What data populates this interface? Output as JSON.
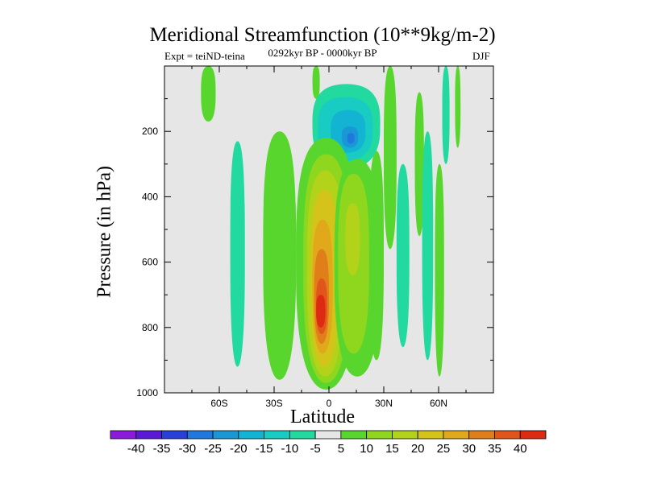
{
  "chart_data": {
    "type": "contour",
    "title": "Meridional Streamfunction (10**9kg/m-2)",
    "subtitle_left": "Expt = teiND-teina",
    "subtitle_center": "0292kyr BP - 0000kyr BP",
    "subtitle_right": "DJF",
    "xlabel": "Latitude",
    "ylabel": "Pressure (in hPa)",
    "x_ticks": [
      {
        "value": -60,
        "label": "60S"
      },
      {
        "value": -30,
        "label": "30S"
      },
      {
        "value": 0,
        "label": "0"
      },
      {
        "value": 30,
        "label": "30N"
      },
      {
        "value": 60,
        "label": "60N"
      }
    ],
    "y_ticks": [
      {
        "value": 200,
        "label": "200"
      },
      {
        "value": 400,
        "label": "400"
      },
      {
        "value": 600,
        "label": "600"
      },
      {
        "value": 800,
        "label": "800"
      },
      {
        "value": 1000,
        "label": "1000"
      }
    ],
    "xlim": [
      -90,
      90
    ],
    "ylim": [
      0,
      1000
    ],
    "levels": [
      -40,
      -35,
      -30,
      -25,
      -20,
      -15,
      -10,
      -5,
      5,
      10,
      15,
      20,
      25,
      30,
      35,
      40
    ],
    "colors": [
      "#8c1adb",
      "#5a19d7",
      "#2840d9",
      "#1f78de",
      "#1a98d6",
      "#13b3d3",
      "#18ccc4",
      "#22d9a0",
      "#e6e6e6",
      "#59d62e",
      "#8fd61f",
      "#b3d21a",
      "#d4c41a",
      "#e0a81a",
      "#e07f1a",
      "#e0561a",
      "#dd2a12"
    ],
    "background_color": "#e6e6e6",
    "features": [
      {
        "label": "negative cell aloft",
        "center": [
          12,
          230
        ],
        "min": -25,
        "rings": [
          {
            "level": -5,
            "lat": [
              -9,
              28
            ],
            "p": [
              55,
              315
            ]
          },
          {
            "level": -10,
            "lat": [
              -6,
              24
            ],
            "p": [
              95,
              290
            ]
          },
          {
            "level": -15,
            "lat": [
              1,
              20
            ],
            "p": [
              135,
              265
            ]
          },
          {
            "level": -20,
            "lat": [
              7,
              16
            ],
            "p": [
              185,
              250
            ]
          },
          {
            "level": -25,
            "lat": [
              10,
              14
            ],
            "p": [
              205,
              238
            ]
          }
        ]
      },
      {
        "label": "positive cell",
        "center": [
          -5,
          740
        ],
        "max": 40,
        "rings": [
          {
            "level": 5,
            "lat": [
              -18,
              15
            ],
            "p": [
              220,
              990
            ]
          },
          {
            "level": 10,
            "lat": [
              -14,
              11
            ],
            "p": [
              270,
              970
            ]
          },
          {
            "level": 15,
            "lat": [
              -12,
              8
            ],
            "p": [
              320,
              950
            ]
          },
          {
            "level": 20,
            "lat": [
              -10,
              5
            ],
            "p": [
              380,
              920
            ]
          },
          {
            "level": 25,
            "lat": [
              -9,
              2
            ],
            "p": [
              470,
              880
            ]
          },
          {
            "level": 30,
            "lat": [
              -8,
              0
            ],
            "p": [
              560,
              850
            ]
          },
          {
            "level": 35,
            "lat": [
              -7,
              -1
            ],
            "p": [
              650,
              820
            ]
          },
          {
            "level": 40,
            "lat": [
              -7,
              -2
            ],
            "p": [
              700,
              800
            ]
          }
        ]
      },
      {
        "label": "secondary positive cell",
        "center": [
          12,
          520
        ],
        "max": 15,
        "rings": [
          {
            "level": 5,
            "lat": [
              3,
              28
            ],
            "p": [
              285,
              950
            ]
          },
          {
            "level": 10,
            "lat": [
              5,
              22
            ],
            "p": [
              330,
              880
            ]
          },
          {
            "level": 15,
            "lat": [
              9,
              17
            ],
            "p": [
              420,
              640
            ]
          }
        ]
      }
    ]
  }
}
